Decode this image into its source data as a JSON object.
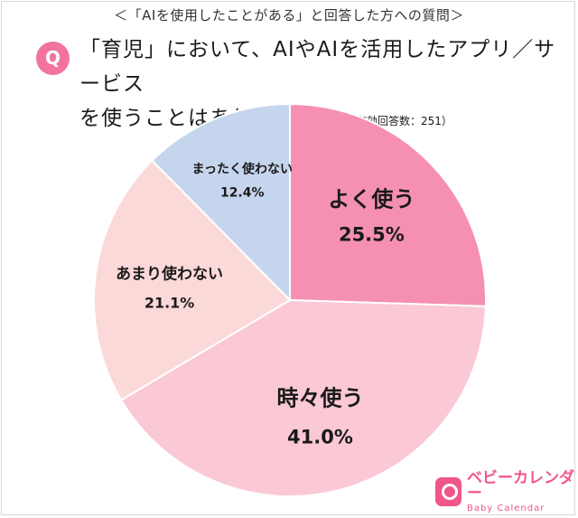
{
  "header": {
    "condition": "＜「AIを使用したことがある」と回答した方への質問＞",
    "q_badge": "Q",
    "question_line1": "「育児」において、AIやAIを活用したアプリ／サービス",
    "question_line2": "を使うことはありますか？",
    "respondents": "（有効回答数：251）"
  },
  "chart_data": {
    "type": "pie",
    "title": "",
    "slices": [
      {
        "label": "よく使う",
        "value": 25.5,
        "value_label": "25.5%",
        "color": "#f590b2"
      },
      {
        "label": "時々使う",
        "value": 41.0,
        "value_label": "41.0%",
        "color": "#fbc8d5"
      },
      {
        "label": "あまり使わない",
        "value": 21.1,
        "value_label": "21.1%",
        "color": "#fcd9d9"
      },
      {
        "label": "まったく使わない",
        "value": 12.4,
        "value_label": "12.4%",
        "color": "#c6d5ee"
      }
    ],
    "start": "12 o'clock",
    "direction": "clockwise"
  },
  "logo": {
    "text": "ベビーカレンダー",
    "sub": "Baby Calendar",
    "color": "#f0568a"
  }
}
